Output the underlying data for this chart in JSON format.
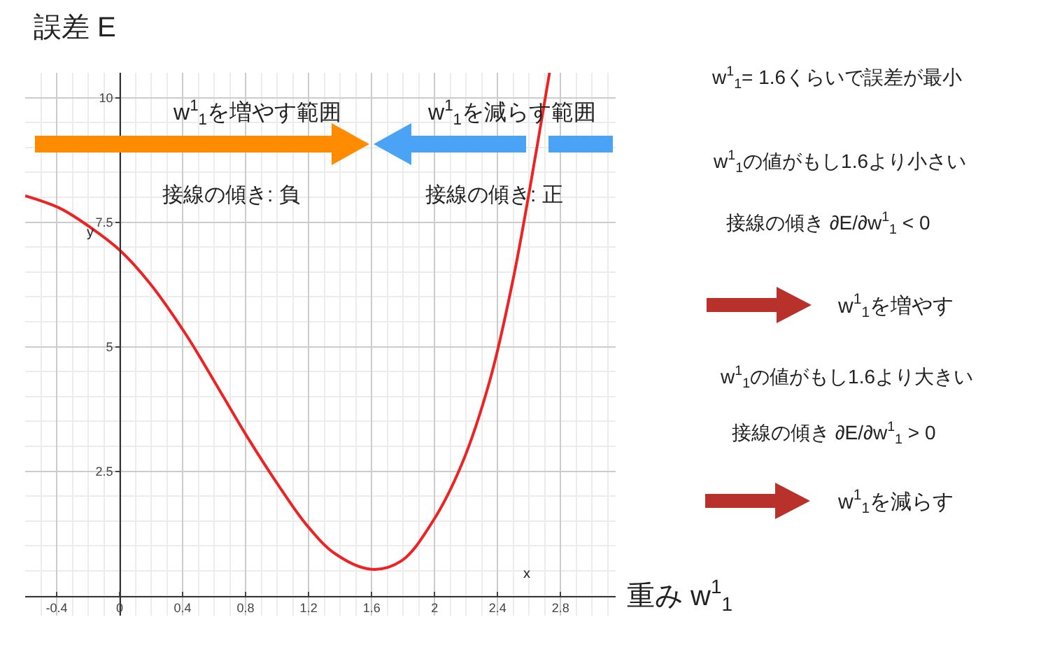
{
  "chart_data": {
    "type": "line",
    "xlabel": "重み w$^{1}$$_{1}$",
    "ylabel": "誤差 E",
    "x": [
      -0.6,
      -0.38,
      -0.17,
      0,
      0.19,
      0.42,
      0.6,
      0.81,
      1.02,
      1.19,
      1.37,
      1.6,
      1.79,
      1.99,
      2.17,
      2.35,
      2.5,
      2.65,
      2.73
    ],
    "series": [
      {
        "color": "#ee2222",
        "values": [
          8.03,
          7.78,
          7.36,
          6.94,
          6.28,
          5.25,
          4.31,
          3.19,
          2.16,
          1.41,
          0.84,
          0.53,
          0.7,
          1.5,
          2.62,
          4.31,
          6.37,
          9.0,
          10.5
        ]
      }
    ],
    "xlim": [
      -0.6,
      3.15
    ],
    "ylim": [
      -0.4,
      10.5
    ],
    "xticks": [
      -0.4,
      0,
      0.4,
      0.8,
      1.2,
      1.6,
      2,
      2.4,
      2.8
    ],
    "yticks": [
      2.5,
      5,
      7.5,
      10
    ],
    "grid": true,
    "annotations": [
      "w$^{1}$$_{1}$を増やす範囲",
      "w$^{1}$$_{1}$を減らす範囲",
      "接線の傾き: 負",
      "接線の傾き: 正",
      "w$^{1}$$_{1}$= 1.6くらいで誤差が最小",
      "w$^{1}$$_{1}$の値がもし1.6より小さい",
      "接線の傾き ∂E/∂w$^{1}$$_{1}$ < 0",
      "w$^{1}$$_{1}$を増やす",
      "w$^{1}$$_{1}$の値がもし1.6より大きい",
      "接線の傾き ∂E/∂w$^{1}$$_{1}$ > 0",
      "w$^{1}$$_{1}$を減らす",
      "x",
      "y"
    ]
  }
}
